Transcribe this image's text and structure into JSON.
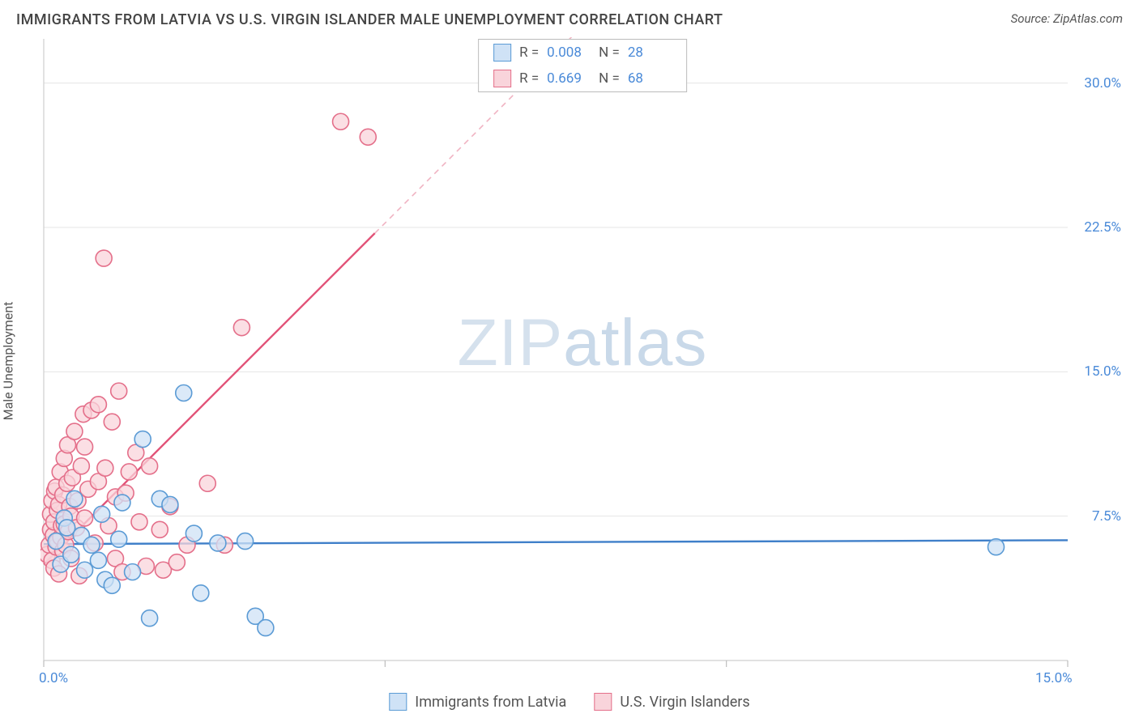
{
  "title": "IMMIGRANTS FROM LATVIA VS U.S. VIRGIN ISLANDER MALE UNEMPLOYMENT CORRELATION CHART",
  "source": "Source: ZipAtlas.com",
  "y_axis_label": "Male Unemployment",
  "watermark": "ZIPatlas",
  "chart": {
    "type": "scatter",
    "xlim": [
      0,
      15
    ],
    "ylim": [
      0,
      32.3
    ],
    "x_ticks": [
      0,
      5,
      10,
      15
    ],
    "x_tick_labels": [
      "0.0%",
      "",
      "",
      "15.0%"
    ],
    "y_ticks": [
      7.5,
      15.0,
      22.5,
      30.0
    ],
    "y_tick_labels": [
      "7.5%",
      "15.0%",
      "22.5%",
      "30.0%"
    ],
    "background_color": "#ffffff",
    "grid_color": "#e5e5e5",
    "axis_color": "#cfcfcf",
    "tick_color": "#bdbdbd",
    "watermark_color": "#c7d7e8",
    "marker_radius": 10,
    "marker_stroke_width": 1.6,
    "trend_solid_width": 2.4,
    "trend_dash_width": 1.6
  },
  "series": [
    {
      "id": "latvia",
      "label": "Immigrants from Latvia",
      "fill": "#cfe2f6",
      "stroke": "#5b9bd5",
      "trend_color": "#3f7fc9",
      "trend_dash_color": "#a9c5e6",
      "R": "0.008",
      "N": "28",
      "trend": {
        "x1": 0,
        "y1": 6.05,
        "x2": 15,
        "y2": 6.25,
        "extend": false
      },
      "points": [
        [
          0.18,
          6.2
        ],
        [
          0.25,
          5.0
        ],
        [
          0.3,
          7.4
        ],
        [
          0.34,
          6.9
        ],
        [
          0.4,
          5.5
        ],
        [
          0.45,
          8.4
        ],
        [
          0.55,
          6.5
        ],
        [
          0.6,
          4.7
        ],
        [
          0.7,
          6.0
        ],
        [
          0.8,
          5.2
        ],
        [
          0.85,
          7.6
        ],
        [
          0.9,
          4.2
        ],
        [
          1.0,
          3.9
        ],
        [
          1.1,
          6.3
        ],
        [
          1.15,
          8.2
        ],
        [
          1.3,
          4.6
        ],
        [
          1.45,
          11.5
        ],
        [
          1.55,
          2.2
        ],
        [
          1.7,
          8.4
        ],
        [
          1.85,
          8.1
        ],
        [
          2.05,
          13.9
        ],
        [
          2.2,
          6.6
        ],
        [
          2.3,
          3.5
        ],
        [
          2.55,
          6.1
        ],
        [
          2.95,
          6.2
        ],
        [
          3.1,
          2.3
        ],
        [
          3.25,
          1.7
        ],
        [
          13.95,
          5.9
        ]
      ]
    },
    {
      "id": "usvi",
      "label": "U.S. Virgin Islanders",
      "fill": "#f9d4db",
      "stroke": "#e46f8a",
      "trend_color": "#e25378",
      "trend_dash_color": "#f0b3c2",
      "R": "0.669",
      "N": "68",
      "trend": {
        "x1": 0,
        "y1": 5.0,
        "x2": 4.85,
        "y2": 22.2,
        "extend": true,
        "ex2": 8.1,
        "ey2": 33.7
      },
      "points": [
        [
          0.05,
          5.5
        ],
        [
          0.08,
          6.0
        ],
        [
          0.1,
          6.8
        ],
        [
          0.1,
          7.6
        ],
        [
          0.12,
          5.2
        ],
        [
          0.12,
          8.3
        ],
        [
          0.14,
          6.5
        ],
        [
          0.15,
          4.8
        ],
        [
          0.15,
          7.2
        ],
        [
          0.16,
          8.8
        ],
        [
          0.18,
          5.9
        ],
        [
          0.18,
          9.0
        ],
        [
          0.2,
          6.2
        ],
        [
          0.2,
          7.8
        ],
        [
          0.22,
          4.5
        ],
        [
          0.22,
          8.1
        ],
        [
          0.24,
          9.8
        ],
        [
          0.25,
          6.4
        ],
        [
          0.26,
          7.0
        ],
        [
          0.28,
          5.7
        ],
        [
          0.28,
          8.6
        ],
        [
          0.3,
          10.5
        ],
        [
          0.3,
          7.1
        ],
        [
          0.32,
          6.0
        ],
        [
          0.34,
          9.2
        ],
        [
          0.35,
          11.2
        ],
        [
          0.36,
          6.7
        ],
        [
          0.38,
          8.0
        ],
        [
          0.4,
          5.3
        ],
        [
          0.4,
          7.5
        ],
        [
          0.42,
          9.5
        ],
        [
          0.45,
          11.9
        ],
        [
          0.48,
          6.9
        ],
        [
          0.5,
          8.3
        ],
        [
          0.52,
          4.4
        ],
        [
          0.55,
          10.1
        ],
        [
          0.58,
          12.8
        ],
        [
          0.6,
          7.4
        ],
        [
          0.6,
          11.1
        ],
        [
          0.65,
          8.9
        ],
        [
          0.7,
          13.0
        ],
        [
          0.75,
          6.1
        ],
        [
          0.8,
          9.3
        ],
        [
          0.8,
          13.3
        ],
        [
          0.88,
          20.9
        ],
        [
          0.9,
          10.0
        ],
        [
          0.95,
          7.0
        ],
        [
          1.0,
          12.4
        ],
        [
          1.05,
          5.3
        ],
        [
          1.05,
          8.5
        ],
        [
          1.1,
          14.0
        ],
        [
          1.15,
          4.6
        ],
        [
          1.2,
          8.7
        ],
        [
          1.25,
          9.8
        ],
        [
          1.35,
          10.8
        ],
        [
          1.4,
          7.2
        ],
        [
          1.5,
          4.9
        ],
        [
          1.55,
          10.1
        ],
        [
          1.7,
          6.8
        ],
        [
          1.75,
          4.7
        ],
        [
          1.85,
          8.0
        ],
        [
          1.95,
          5.1
        ],
        [
          2.1,
          6.0
        ],
        [
          2.4,
          9.2
        ],
        [
          2.65,
          6.0
        ],
        [
          2.9,
          17.3
        ],
        [
          4.35,
          28.0
        ],
        [
          4.75,
          27.2
        ]
      ]
    }
  ],
  "legend_top": {
    "rows": [
      {
        "swatch_fill": "#cfe2f6",
        "swatch_border": "#5b9bd5",
        "r_label": "R =",
        "r_val": "0.008",
        "n_label": "N =",
        "n_val": "28"
      },
      {
        "swatch_fill": "#f9d4db",
        "swatch_border": "#e46f8a",
        "r_label": "R =",
        "r_val": "0.669",
        "n_label": "N =",
        "n_val": "68"
      }
    ]
  },
  "legend_bottom": {
    "items": [
      {
        "swatch_fill": "#cfe2f6",
        "swatch_border": "#5b9bd5",
        "label": "Immigrants from Latvia"
      },
      {
        "swatch_fill": "#f9d4db",
        "swatch_border": "#e46f8a",
        "label": "U.S. Virgin Islanders"
      }
    ]
  }
}
